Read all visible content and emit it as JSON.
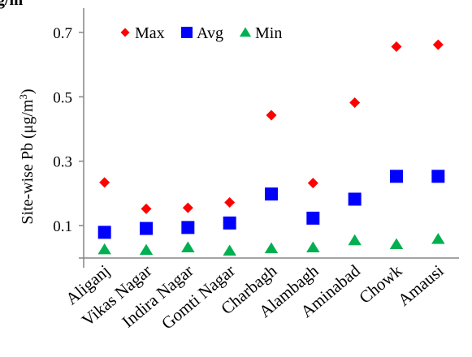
{
  "chart_data": {
    "type": "scatter",
    "categories": [
      "Aliganj",
      "Vikas Nagar",
      "Indira Nagar",
      "Gomti Nagar",
      "Charbagh",
      "Alambagh",
      "Aminabad",
      "Chowk",
      "Amausi"
    ],
    "series": [
      {
        "name": "Max",
        "marker": "diamond",
        "color": "#ff0000",
        "values": [
          0.234,
          0.152,
          0.155,
          0.172,
          0.443,
          0.232,
          0.482,
          0.656,
          0.662
        ]
      },
      {
        "name": "Avg",
        "marker": "square",
        "color": "#0000ff",
        "values": [
          0.079,
          0.091,
          0.094,
          0.108,
          0.198,
          0.123,
          0.182,
          0.253,
          0.253
        ]
      },
      {
        "name": "Min",
        "marker": "triangle",
        "color": "#00b050",
        "values": [
          0.026,
          0.024,
          0.032,
          0.022,
          0.029,
          0.032,
          0.054,
          0.042,
          0.058
        ]
      }
    ],
    "title_fragment": "g/m",
    "ylabel": "Site-wise Pb (μg/m³)",
    "ylabel_main": "Site-wise Pb (μg/m",
    "ylabel_sup": "3",
    "ylabel_end": ")",
    "yticks": [
      0.1,
      0.3,
      0.5,
      0.7
    ],
    "ytick_labels": [
      "0.1",
      "0.3",
      "0.5",
      "0.7"
    ],
    "ylim": [
      0,
      0.77
    ],
    "legend_position": "top-left",
    "grid": false
  }
}
